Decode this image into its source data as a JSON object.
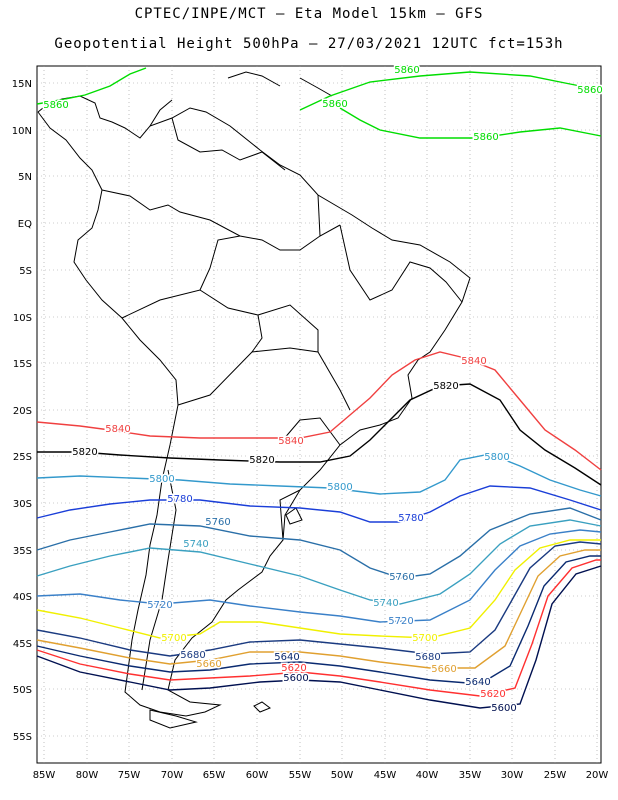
{
  "title_line1": "CPTEC/INPE/MCT –  Eta Model 15km – GFS",
  "title_line2": "Geopotential Height 500hPa – 27/03/2021 12UTC fct=153h",
  "lat_labels": [
    "15N",
    "10N",
    "5N",
    "EQ",
    "5S",
    "10S",
    "15S",
    "20S",
    "25S",
    "30S",
    "35S",
    "40S",
    "45S",
    "50S",
    "55S"
  ],
  "lon_labels": [
    "85W",
    "80W",
    "75W",
    "70W",
    "65W",
    "60W",
    "55W",
    "50W",
    "45W",
    "40W",
    "35W",
    "30W",
    "25W",
    "20W"
  ],
  "contours": [
    {
      "value": "5860",
      "color": "#00dd00"
    },
    {
      "value": "5840",
      "color": "#f04040"
    },
    {
      "value": "5820",
      "color": "#000000"
    },
    {
      "value": "5800",
      "color": "#3399cc"
    },
    {
      "value": "5780",
      "color": "#1a3ed8"
    },
    {
      "value": "5760",
      "color": "#2a6fa8"
    },
    {
      "value": "5740",
      "color": "#3aa0c0"
    },
    {
      "value": "5720",
      "color": "#3a80c8"
    },
    {
      "value": "5700",
      "color": "#f0f000"
    },
    {
      "value": "5680",
      "color": "#1a3a80"
    },
    {
      "value": "5660",
      "color": "#e0a030"
    },
    {
      "value": "5640",
      "color": "#0a2a70"
    },
    {
      "value": "5620",
      "color": "#ff3030"
    },
    {
      "value": "5600",
      "color": "#001050"
    }
  ]
}
